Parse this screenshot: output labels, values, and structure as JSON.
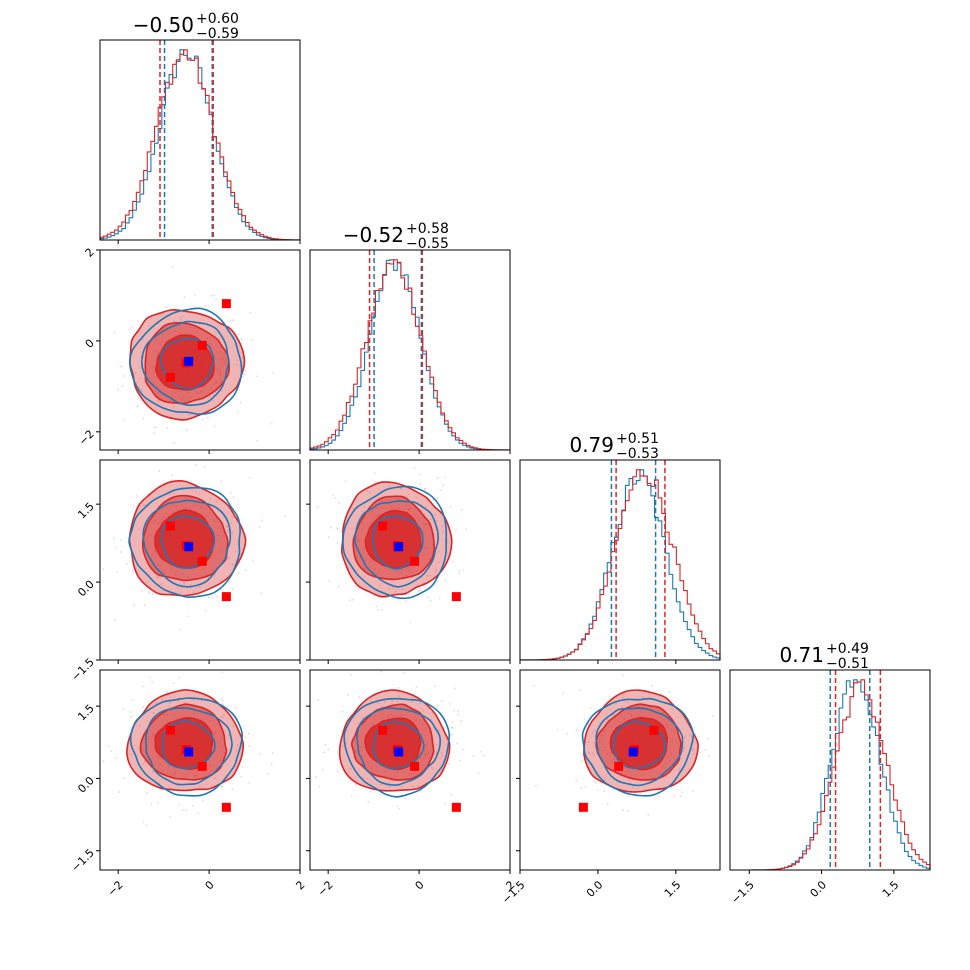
{
  "figure": {
    "kind": "corner plot",
    "colors": {
      "series_a": "#1f77b4",
      "series_b": "#d62728",
      "truth_primary": "#0000ff",
      "truth_other": "#ff0000"
    }
  },
  "chart_data": {
    "type": "corner",
    "dimensions": 4,
    "series": [
      {
        "color": "#1f77b4"
      },
      {
        "color": "#d62728"
      }
    ],
    "marginals": [
      {
        "title_main": "−0.50",
        "title_sup": "+0.60",
        "title_sub": "−0.59",
        "median": -0.5,
        "plus": 0.6,
        "minus": 0.59,
        "range": [
          -2.4,
          2.0
        ],
        "quantile_lines": {
          "#1f77b4": [
            -0.98,
            0.07
          ],
          "#d62728": [
            -1.08,
            0.09
          ]
        }
      },
      {
        "title_main": "−0.52",
        "title_sup": "+0.58",
        "title_sub": "−0.55",
        "median": -0.52,
        "plus": 0.58,
        "minus": 0.55,
        "range": [
          -2.4,
          2.0
        ],
        "quantile_lines": {
          "#1f77b4": [
            -0.99,
            0.05
          ],
          "#d62728": [
            -1.09,
            0.07
          ]
        }
      },
      {
        "title_main": "0.79",
        "title_sup": "+0.51",
        "title_sub": "−0.53",
        "median": 0.79,
        "plus": 0.51,
        "minus": 0.53,
        "range": [
          -1.5,
          2.35
        ],
        "quantile_lines": {
          "#1f77b4": [
            0.26,
            1.11
          ],
          "#d62728": [
            0.35,
            1.29
          ]
        }
      },
      {
        "title_main": "0.71",
        "title_sup": "+0.49",
        "title_sub": "−0.51",
        "median": 0.71,
        "plus": 0.49,
        "minus": 0.51,
        "range": [
          -1.9,
          2.25
        ],
        "quantile_lines": {
          "#1f77b4": [
            0.18,
            1.0
          ],
          "#d62728": [
            0.29,
            1.22
          ]
        }
      }
    ],
    "ticks": {
      "dim0": {
        "values": [
          -2,
          0,
          2
        ],
        "labels": [
          "−2",
          "0",
          "2"
        ]
      },
      "dim1": {
        "values": [
          -2,
          0,
          2
        ],
        "labels": [
          "−2",
          "0",
          "2"
        ]
      },
      "dim2": {
        "values": [
          -1.5,
          0.0,
          1.5
        ],
        "labels": [
          "−1.5",
          "0.0",
          "1.5"
        ]
      },
      "dim3": {
        "values": [
          -1.5,
          0.0,
          1.5
        ],
        "labels": [
          "−1.5",
          "0.0",
          "1.5"
        ]
      }
    },
    "truth_points": {
      "primary": {
        "color": "#0000ff",
        "point": [
          -0.45,
          -0.45,
          0.68,
          0.55
        ]
      },
      "others": {
        "color": "#ff0000",
        "points": [
          [
            0.38,
            0.82,
            -0.28,
            -0.6
          ],
          [
            -0.15,
            -0.1,
            0.4,
            0.25
          ],
          [
            -0.85,
            -0.8,
            1.08,
            1.0
          ],
          [
            -0.5,
            -0.48,
            0.7,
            0.6
          ]
        ]
      }
    },
    "contour_levels": [
      {
        "series": "#d62728",
        "rx": [
          1.35,
          1.35
        ],
        "fill_opacity": 0.35
      },
      {
        "series": "#d62728",
        "rx": [
          1.0,
          1.0
        ],
        "fill_opacity": 0.5
      },
      {
        "series": "#d62728",
        "rx": [
          0.68,
          0.68
        ],
        "fill_opacity": 0.85
      },
      {
        "series": "#1f77b4",
        "rx": [
          1.3,
          1.3
        ],
        "fill_opacity": 0
      },
      {
        "series": "#1f77b4",
        "rx": [
          1.02,
          1.02
        ],
        "fill_opacity": 0
      },
      {
        "series": "#1f77b4",
        "rx": [
          0.62,
          0.62
        ],
        "fill_opacity": 0
      }
    ]
  }
}
